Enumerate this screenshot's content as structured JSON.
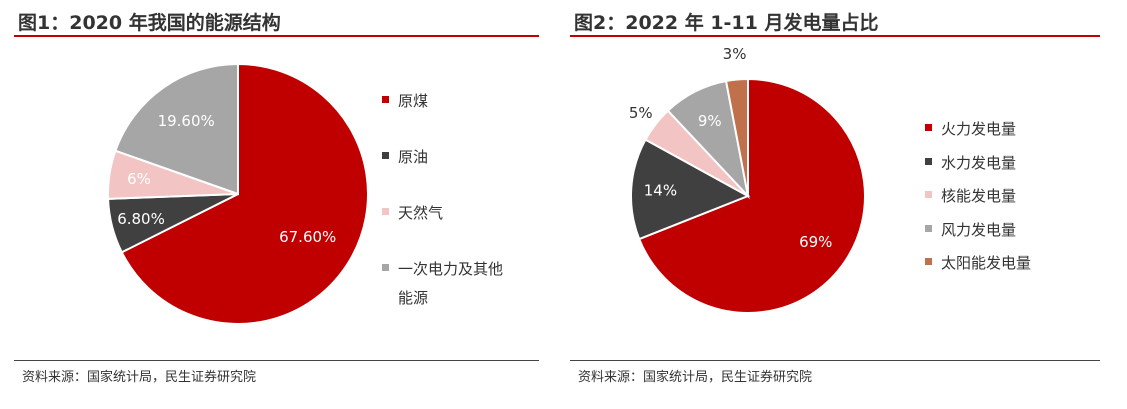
{
  "chart_data": [
    {
      "type": "pie",
      "title": "图1：2020 年我国的能源结构",
      "categories": [
        "原煤",
        "原油",
        "天然气",
        "一次电力及其他能源"
      ],
      "legend_lines": [
        [
          "原煤"
        ],
        [
          "原油"
        ],
        [
          "天然气"
        ],
        [
          "一次电力及其他",
          "能源"
        ]
      ],
      "values": [
        67.6,
        6.8,
        6,
        19.6
      ],
      "data_labels": [
        "67.60%",
        "6.80%",
        "6%",
        "19.60%"
      ],
      "colors": [
        "#c00000",
        "#404040",
        "#f2c4c4",
        "#a6a6a6"
      ],
      "label_colors": [
        "#ffffff",
        "#ffffff",
        "#ffffff",
        "#ffffff"
      ],
      "legend": "right",
      "source": "资料来源：国家统计局，民生证券研究院"
    },
    {
      "type": "pie",
      "title": "图2：2022 年 1-11 月发电量占比",
      "categories": [
        "火力发电量",
        "水力发电量",
        "核能发电量",
        "风力发电量",
        "太阳能发电量"
      ],
      "legend_lines": [
        [
          "火力发电量"
        ],
        [
          "水力发电量"
        ],
        [
          "核能发电量"
        ],
        [
          "风力发电量"
        ],
        [
          "太阳能发电量"
        ]
      ],
      "values": [
        69,
        14,
        5,
        9,
        3
      ],
      "data_labels": [
        "69%",
        "14%",
        "5%",
        "9%",
        "3%"
      ],
      "colors": [
        "#c00000",
        "#404040",
        "#f2c4c4",
        "#a6a6a6",
        "#c0704a"
      ],
      "label_colors": [
        "#ffffff",
        "#ffffff",
        "#333333",
        "#ffffff",
        "#333333"
      ],
      "legend": "right",
      "source": "资料来源：国家统计局，民生证券研究院"
    }
  ]
}
